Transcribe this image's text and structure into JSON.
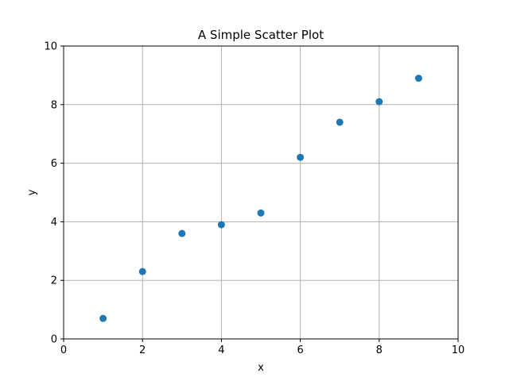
{
  "chart_data": {
    "type": "scatter",
    "title": "A Simple Scatter Plot",
    "xlabel": "x",
    "ylabel": "y",
    "xlim": [
      0,
      10
    ],
    "ylim": [
      0,
      10
    ],
    "x_ticks": [
      0,
      2,
      4,
      6,
      8,
      10
    ],
    "y_ticks": [
      0,
      2,
      4,
      6,
      8,
      10
    ],
    "grid": true,
    "series": [
      {
        "x": [
          1,
          2,
          3,
          4,
          5,
          6,
          7,
          8,
          9
        ],
        "y": [
          0.7,
          2.3,
          3.6,
          3.9,
          4.3,
          6.2,
          7.4,
          8.1,
          8.9
        ],
        "color": "#1f77b4"
      }
    ]
  }
}
